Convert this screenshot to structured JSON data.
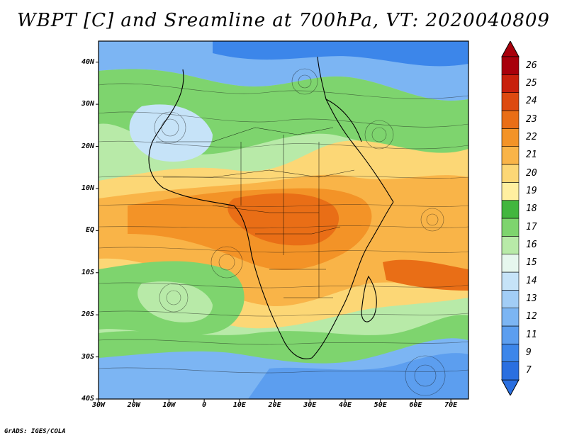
{
  "title": "WBPT [C] and Sreamline at 700hPa, VT: 2020040809",
  "credit": "GrADS: IGES/COLA",
  "map": {
    "lon_range": [
      -30,
      75
    ],
    "lat_range": [
      -40,
      45
    ],
    "y_axis_labels": [
      {
        "lat": 40,
        "text": "40N"
      },
      {
        "lat": 30,
        "text": "30N"
      },
      {
        "lat": 20,
        "text": "20N"
      },
      {
        "lat": 10,
        "text": "10N"
      },
      {
        "lat": 0,
        "text": "EQ"
      },
      {
        "lat": -10,
        "text": "10S"
      },
      {
        "lat": -20,
        "text": "20S"
      },
      {
        "lat": -30,
        "text": "30S"
      },
      {
        "lat": -40,
        "text": "40S"
      }
    ],
    "x_axis_labels": [
      {
        "lon": -30,
        "text": "30W"
      },
      {
        "lon": -20,
        "text": "20W"
      },
      {
        "lon": -10,
        "text": "10W"
      },
      {
        "lon": 0,
        "text": "0"
      },
      {
        "lon": 10,
        "text": "10E"
      },
      {
        "lon": 20,
        "text": "20E"
      },
      {
        "lon": 30,
        "text": "30E"
      },
      {
        "lon": 40,
        "text": "40E"
      },
      {
        "lon": 50,
        "text": "50E"
      },
      {
        "lon": 60,
        "text": "60E"
      },
      {
        "lon": 70,
        "text": "70E"
      }
    ]
  },
  "colorbar": {
    "levels": [
      "7",
      "9",
      "11",
      "12",
      "13",
      "14",
      "15",
      "16",
      "17",
      "18",
      "19",
      "20",
      "21",
      "22",
      "23",
      "24",
      "25",
      "26"
    ],
    "colors": [
      "#2a6fe0",
      "#3c86ea",
      "#5c9eef",
      "#7cb5f3",
      "#a2cdf6",
      "#c6e3f8",
      "#e6f7ee",
      "#b8eaa8",
      "#7ed46e",
      "#42b63e",
      "#ffefa0",
      "#fcd776",
      "#f9b448",
      "#f39327",
      "#e96e16",
      "#dd4a10",
      "#c8200c",
      "#a8000b"
    ],
    "extend_low_color": "#2a6fe0",
    "extend_high_color": "#a8000b"
  }
}
